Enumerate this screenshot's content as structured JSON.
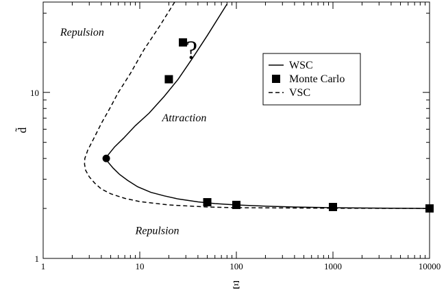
{
  "chart_data": {
    "type": "line",
    "xscale": "log",
    "yscale": "log",
    "xlim": [
      1,
      10000
    ],
    "ylim": [
      1,
      35
    ],
    "xlabel": "Ξ",
    "ylabel": "d̃",
    "x_tick_labels": [
      "1",
      "10",
      "100",
      "1000",
      "10000"
    ],
    "x_tick_values": [
      1,
      10,
      100,
      1000,
      10000
    ],
    "y_tick_labels": [
      "1",
      "10"
    ],
    "y_tick_values": [
      1,
      10
    ],
    "grid": false,
    "legend_placement": "upper-right-inside",
    "series": [
      {
        "name": "WSC",
        "style": "solid",
        "points": [
          [
            80,
            34
          ],
          [
            50,
            22
          ],
          [
            35,
            16
          ],
          [
            25,
            12
          ],
          [
            18,
            9.5
          ],
          [
            12.5,
            7.5
          ],
          [
            9,
            6.3
          ],
          [
            6.8,
            5.3
          ],
          [
            5.5,
            4.7
          ],
          [
            4.7,
            4.2
          ],
          [
            4.5,
            4.0
          ],
          [
            4.7,
            3.8
          ],
          [
            5.3,
            3.5
          ],
          [
            6.2,
            3.2
          ],
          [
            7.5,
            2.95
          ],
          [
            9.5,
            2.7
          ],
          [
            13,
            2.5
          ],
          [
            18,
            2.38
          ],
          [
            25,
            2.28
          ],
          [
            40,
            2.19
          ],
          [
            60,
            2.14
          ],
          [
            100,
            2.1
          ],
          [
            200,
            2.065
          ],
          [
            400,
            2.04
          ],
          [
            1000,
            2.02
          ],
          [
            3000,
            2.01
          ],
          [
            10000,
            2.0
          ]
        ]
      },
      {
        "name": "Monte Carlo",
        "style": "square-markers",
        "points": [
          [
            28,
            20
          ],
          [
            20,
            12
          ],
          [
            50,
            2.18
          ],
          [
            100,
            2.1
          ],
          [
            1000,
            2.04
          ],
          [
            10000,
            2.0
          ]
        ]
      },
      {
        "name": "VSC",
        "style": "dashed",
        "points": [
          [
            23,
            35
          ],
          [
            16,
            25
          ],
          [
            11,
            18
          ],
          [
            8,
            13
          ],
          [
            6,
            10
          ],
          [
            5,
            8.2
          ],
          [
            4,
            6.5
          ],
          [
            3.3,
            5.2
          ],
          [
            2.9,
            4.5
          ],
          [
            2.7,
            4.0
          ],
          [
            2.68,
            3.7
          ],
          [
            2.75,
            3.4
          ],
          [
            3.0,
            3.1
          ],
          [
            3.4,
            2.85
          ],
          [
            4.0,
            2.62
          ],
          [
            5,
            2.45
          ],
          [
            7,
            2.3
          ],
          [
            10,
            2.2
          ],
          [
            20,
            2.1
          ],
          [
            50,
            2.04
          ],
          [
            100,
            2.02
          ],
          [
            1000,
            2.005
          ],
          [
            10000,
            2.0
          ]
        ]
      }
    ],
    "critical_point": [
      4.5,
      4.0
    ],
    "annotations": [
      {
        "text": "Repulsion",
        "x": 1.5,
        "y": 22,
        "anchor": "start"
      },
      {
        "text": "Attraction",
        "x": 17,
        "y": 6.7,
        "anchor": "start"
      },
      {
        "text": "Repulsion",
        "x": 9,
        "y": 1.4,
        "anchor": "start"
      },
      {
        "text": "?",
        "x": 30,
        "y": 16,
        "anchor": "start",
        "kind": "question"
      }
    ],
    "legend": [
      {
        "label": "WSC",
        "symbol": "solid-line"
      },
      {
        "label": "Monte Carlo",
        "symbol": "square"
      },
      {
        "label": "VSC",
        "symbol": "dashed-line"
      }
    ]
  }
}
